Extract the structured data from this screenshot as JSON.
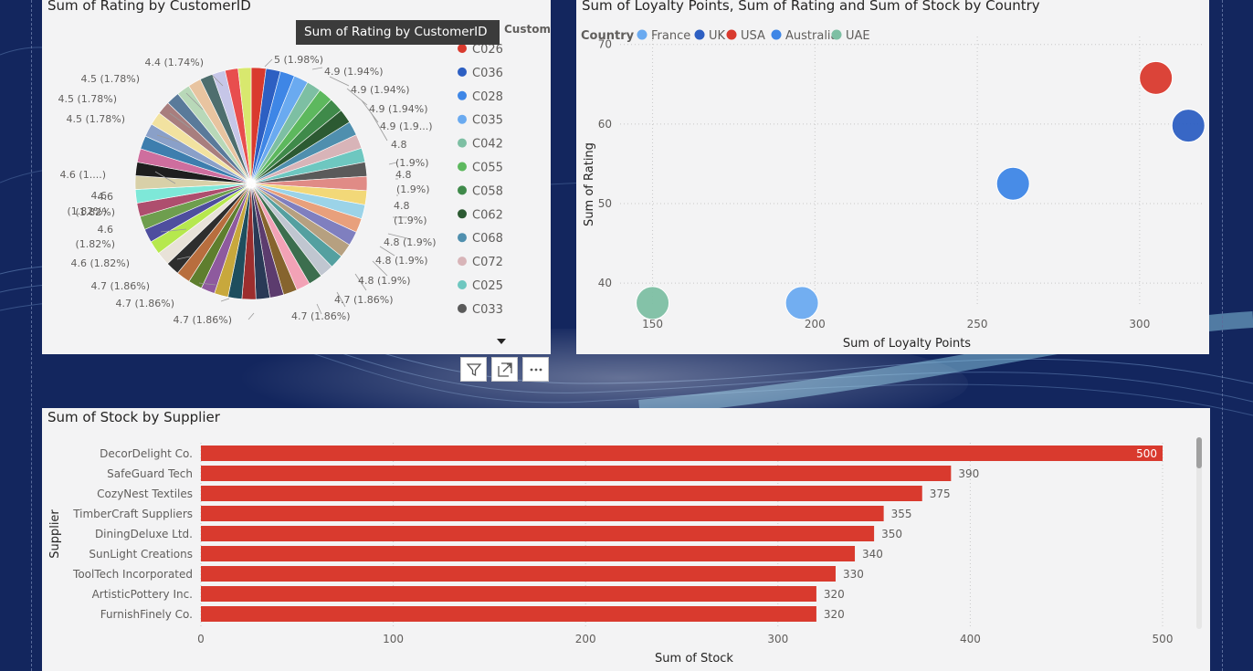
{
  "colors": {
    "pie_palette": [
      "#d93a2e",
      "#2d5fc2",
      "#3e86e6",
      "#6aaaf0",
      "#7dbfa3",
      "#5db85e",
      "#3f8a4a",
      "#2c5a32",
      "#4f8fae",
      "#d8b4b8",
      "#6ec7c0",
      "#5a5a5a",
      "#e08b86",
      "#f2d878",
      "#9bd3e8",
      "#e8a07c",
      "#7f7fbf",
      "#b6a080",
      "#54a0a0",
      "#c0c6d0",
      "#3c6e4e",
      "#f2a2b6",
      "#86642e",
      "#5c3c6e",
      "#2a3a56",
      "#9c2e2e",
      "#1e4e5e",
      "#c8a83c",
      "#8e5a9e",
      "#5e7e2e",
      "#b86e3e",
      "#2e2e2e",
      "#e8e2d8",
      "#b6e84e",
      "#4e4e9e",
      "#6e9e4e",
      "#ae4e6e",
      "#7ee8d8",
      "#d8d0a8",
      "#1e1e1e",
      "#ce6e9e",
      "#3e7eae",
      "#8aa0c8",
      "#f2e2a0",
      "#a87e7e",
      "#5a7a9a",
      "#b8d8b8",
      "#e8c4a0",
      "#4e6e6e",
      "#c6c6e8",
      "#e84e4e",
      "#d8e86e"
    ],
    "bar": "#d93a2e",
    "country": {
      "France": "#6aaaf0",
      "UK": "#2d5fc2",
      "USA": "#d93a2e",
      "Australia": "#3e86e6",
      "UAE": "#7dbfa3"
    }
  },
  "chart_data": [
    {
      "type": "pie",
      "title": "Sum of Rating by CustomerID",
      "legend_title": "CustomerID",
      "legend_placement": "right",
      "legend": [
        "C026",
        "C036",
        "C028",
        "C035",
        "C042",
        "C055",
        "C058",
        "C062",
        "C068",
        "C072",
        "C025",
        "C033"
      ],
      "values": [
        5,
        4.9,
        4.9,
        4.9,
        4.9,
        4.9,
        4.9,
        4.8,
        4.8,
        4.8,
        4.8,
        4.8,
        4.8,
        4.8,
        4.8,
        4.8,
        4.8,
        4.7,
        4.7,
        4.7,
        4.7,
        4.7,
        4.7,
        4.7,
        4.7,
        4.7,
        4.7,
        4.7,
        4.7,
        4.7,
        4.7,
        4.6,
        4.6,
        4.6,
        4.6,
        4.6,
        4.6,
        4.6,
        4.6,
        4.6,
        4.6,
        4.5,
        4.5,
        4.5,
        4.5,
        4.5,
        4.5,
        4.4,
        4.4,
        4.4,
        4.4,
        4.4
      ],
      "data_labels": [
        {
          "text": "5 (1.98%)",
          "anchor": "start"
        },
        {
          "text": "4.9 (1.94%)",
          "anchor": "start"
        },
        {
          "text": "4.9 (1.94%)",
          "anchor": "start"
        },
        {
          "text": "4.9 (1.94%)",
          "anchor": "start"
        },
        {
          "text": "4.9 (1.9...)",
          "anchor": "start"
        },
        {
          "text": "4.8",
          "anchor": "start"
        },
        {
          "text": "(1.9%)",
          "anchor": "start"
        },
        {
          "text": "4.8",
          "anchor": "start"
        },
        {
          "text": "(1.9%)",
          "anchor": "start"
        },
        {
          "text": "4.8",
          "anchor": "start"
        },
        {
          "text": "(1.9%)",
          "anchor": "start"
        },
        {
          "text": "4.8 (1.9%)",
          "anchor": "start"
        },
        {
          "text": "4.8 (1.9%)",
          "anchor": "start"
        },
        {
          "text": "4.8 (1.9%)",
          "anchor": "start"
        },
        {
          "text": "4.7 (1.86%)",
          "anchor": "start"
        },
        {
          "text": "4.7 (1.86%)",
          "anchor": "start"
        },
        {
          "text": "4.7 (1.86%)",
          "anchor": "end"
        },
        {
          "text": "4.7 (1.86%)",
          "anchor": "end"
        },
        {
          "text": "4.7 (1.86%)",
          "anchor": "end"
        },
        {
          "text": "4.6 (1.82%)",
          "anchor": "end"
        },
        {
          "text": "4.6",
          "anchor": "end"
        },
        {
          "text": "(1.82%)",
          "anchor": "end"
        },
        {
          "text": "4.6",
          "anchor": "end"
        },
        {
          "text": "(1.82%)",
          "anchor": "end"
        },
        {
          "text": "4.6 (1....)",
          "anchor": "end"
        },
        {
          "text": "4.6",
          "anchor": "end"
        },
        {
          "text": "(1.82%)",
          "anchor": "end"
        },
        {
          "text": "4.5 (1.78%)",
          "anchor": "end"
        },
        {
          "text": "4.5 (1.78%)",
          "anchor": "end"
        },
        {
          "text": "4.5 (1.78%)",
          "anchor": "end"
        },
        {
          "text": "4.4 (1.74%)",
          "anchor": "end"
        }
      ]
    },
    {
      "type": "scatter",
      "title": "Sum of Loyalty Points, Sum of Rating and Sum of Stock by Country",
      "legend_title": "Country",
      "legend_placement": "top-left",
      "legend": [
        "France",
        "UK",
        "USA",
        "Australia",
        "UAE"
      ],
      "xlabel": "Sum of Loyalty Points",
      "ylabel": "Sum of Rating",
      "xlim": [
        140,
        320
      ],
      "ylim": [
        36,
        71
      ],
      "xticks": [
        150,
        200,
        250,
        300
      ],
      "yticks": [
        40,
        50,
        60,
        70
      ],
      "grid": true,
      "points": [
        {
          "country": "France",
          "x": 196,
          "y": 37.5
        },
        {
          "country": "UK",
          "x": 315,
          "y": 59.8
        },
        {
          "country": "USA",
          "x": 305,
          "y": 65.8
        },
        {
          "country": "Australia",
          "x": 261,
          "y": 52.5
        },
        {
          "country": "UAE",
          "x": 150,
          "y": 37.5
        }
      ]
    },
    {
      "type": "bar",
      "orientation": "horizontal",
      "title": "Sum of Stock by Supplier",
      "xlabel": "Sum of Stock",
      "ylabel": "Supplier",
      "xlim": [
        0,
        500
      ],
      "xticks": [
        0,
        100,
        200,
        300,
        400,
        500
      ],
      "categories": [
        "DecorDelight Co.",
        "SafeGuard Tech",
        "CozyNest Textiles",
        "TimberCraft Suppliers",
        "DiningDeluxe Ltd.",
        "SunLight Creations",
        "ToolTech Incorporated",
        "ArtisticPottery Inc.",
        "FurnishFinely Co."
      ],
      "values": [
        500,
        390,
        375,
        355,
        350,
        340,
        330,
        320,
        320
      ]
    }
  ],
  "tooltip": "Sum of  Rating by  CustomerID",
  "toolbar": {
    "filter_icon": "filter-icon",
    "focus_icon": "focus-mode-icon",
    "more_icon": "more-options-icon"
  }
}
